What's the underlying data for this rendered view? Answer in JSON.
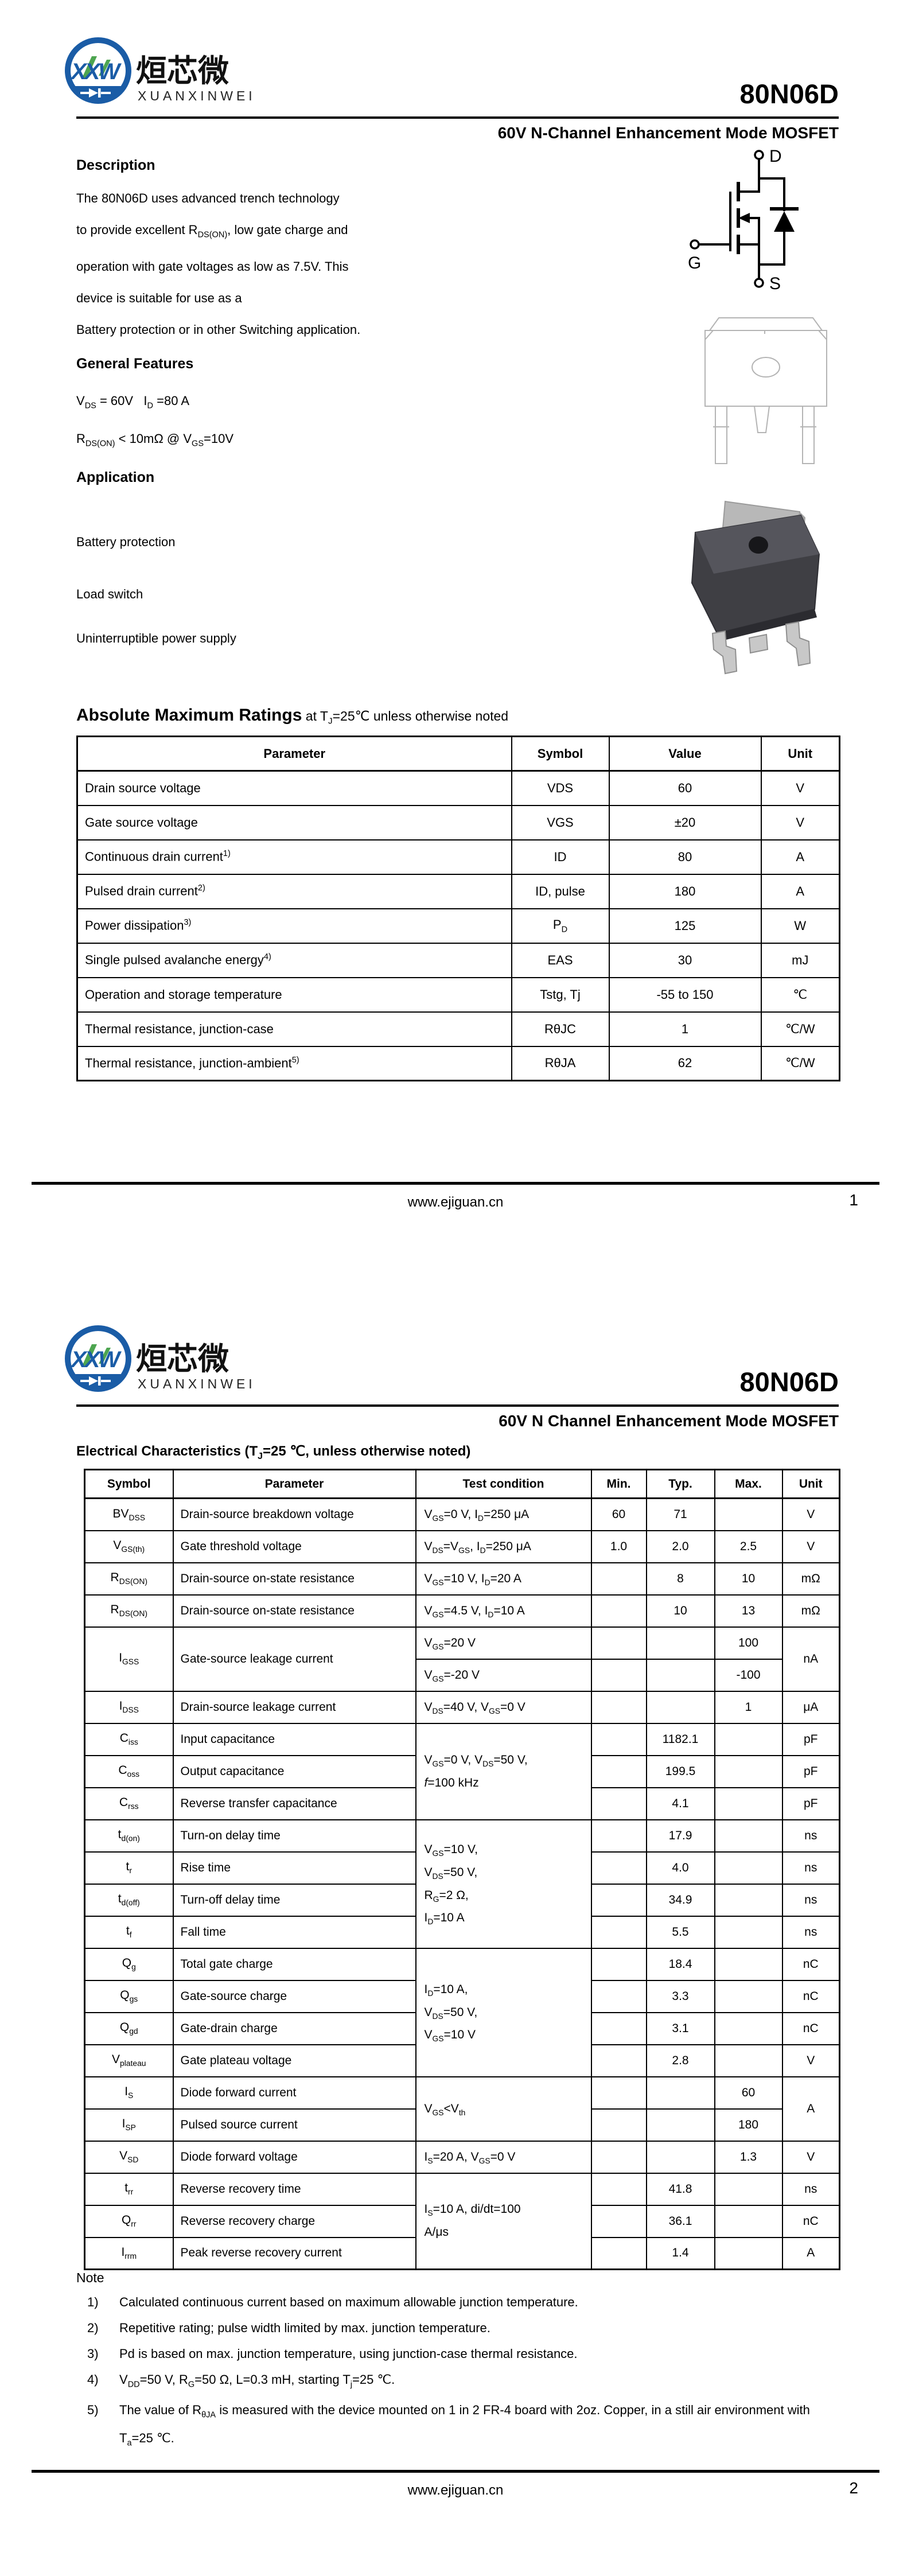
{
  "colors": {
    "logo_blue": "#1a5ca6",
    "logo_green": "#43a047"
  },
  "brand": {
    "abbr": "XXW",
    "name_cn": "烜芯微",
    "name_en": "XUANXINWEI"
  },
  "page1": {
    "part_number": "80N06D",
    "subtitle": "60V N-Channel Enhancement Mode MOSFET",
    "description_heading": "Description",
    "description_body": "The  80N06D uses advanced trench technology\nto provide excellent R~DS(ON)~, low gate charge and\noperation with gate voltages as low as 7.5V. This\ndevice is suitable for use as a\nBattery protection or in other Switching application.",
    "features_heading": "General Features",
    "features": {
      "line1": "V~DS~ = 60V   I~D~ =80 A",
      "line2": "R~DS(ON)~ < 10mΩ @ V~GS~=10V"
    },
    "application_heading": "Application",
    "application_items": [
      "Battery protection",
      "Load switch",
      "Uninterruptible power supply"
    ],
    "symbol_labels": {
      "d": "D",
      "g": "G",
      "s": "S"
    },
    "abs_max": {
      "heading": "Absolute Maximum Ratings",
      "heading_note": " at T~J~=25℃ unless otherwise noted",
      "columns": [
        "Parameter",
        "Symbol",
        "Value",
        "Unit"
      ],
      "rows": [
        {
          "param": "Drain source voltage",
          "sym": "VDS",
          "val": "60",
          "unit": "V"
        },
        {
          "param": "Gate source voltage",
          "sym": "VGS",
          "val": "±20",
          "unit": "V"
        },
        {
          "param": "Continuous drain current^1)^",
          "sym": "ID",
          "val": "80",
          "unit": "A"
        },
        {
          "param": "Pulsed drain current^2)^",
          "sym": "ID, pulse",
          "val": "180",
          "unit": "A"
        },
        {
          "param": "Power dissipation^3)^",
          "sym": "P~D~",
          "val": "125",
          "unit": "W"
        },
        {
          "param": "Single pulsed avalanche energy^4)^",
          "sym": "EAS",
          "val": "30",
          "unit": "mJ"
        },
        {
          "param": "Operation and storage temperature",
          "sym": "Tstg,  Tj",
          "val": "-55 to 150",
          "unit": "℃"
        },
        {
          "param": "Thermal resistance, junction-case",
          "sym": "RθJC",
          "val": "1",
          "unit": "℃/W"
        },
        {
          "param": "Thermal resistance, junction-ambient^5)^",
          "sym": "RθJA",
          "val": "62",
          "unit": "℃/W"
        }
      ]
    },
    "footer": {
      "url": "www.ejiguan.cn",
      "page": "1"
    }
  },
  "page2": {
    "part_number": "80N06D",
    "subtitle": "60V N Channel Enhancement Mode MOSFET",
    "elec_heading": "Electrical Characteristics (T~J~=25 ℃, unless otherwise noted)",
    "columns": [
      "Symbol",
      "Parameter",
      "Test condition",
      "Min.",
      "Typ.",
      "Max.",
      "Unit"
    ],
    "rows": [
      {
        "sym": "BV~DSS~",
        "param": "Drain-source breakdown voltage",
        "cond": "V~GS~=0 V, I~D~=250 μA",
        "min": "60",
        "typ": "71",
        "max": "",
        "unit": "V"
      },
      {
        "sym": "V~GS(th)~",
        "param": "Gate threshold voltage",
        "cond": "V~DS~=V~GS~, I~D~=250 μA",
        "min": "1.0",
        "typ": "2.0",
        "max": "2.5",
        "unit": "V"
      },
      {
        "sym": "R~DS(ON)~",
        "param": "Drain-source on-state resistance",
        "cond": "V~GS~=10 V, I~D~=20 A",
        "min": "",
        "typ": "8",
        "max": "10",
        "unit": "mΩ"
      },
      {
        "sym": "R~DS(ON)~",
        "param": "Drain-source on-state resistance",
        "cond": "V~GS~=4.5 V, I~D~=10 A",
        "min": "",
        "typ": "10",
        "max": "13",
        "unit": "mΩ"
      },
      {
        "sym": "I~GSS~",
        "param": "Gate-source leakage current",
        "cond": "V~GS~=20 V",
        "min": "",
        "typ": "",
        "max": "100",
        "unit": "nA"
      },
      {
        "cond": "V~GS~=-20 V",
        "min": "",
        "typ": "",
        "max": "-100"
      },
      {
        "sym": "I~DSS~",
        "param": "Drain-source leakage current",
        "cond": "V~DS~=40 V, V~GS~=0 V",
        "min": "",
        "typ": "",
        "max": "1",
        "unit": "μA"
      },
      {
        "sym": "C~iss~",
        "param": "Input capacitance",
        "cond": "V~GS~=0 V,  V~DS~=50 V,\n*f*=100 kHz",
        "min": "",
        "typ": "1182.1",
        "max": "",
        "unit": "pF"
      },
      {
        "sym": "C~oss~",
        "param": "Output capacitance",
        "typ": "199.5",
        "unit": "pF"
      },
      {
        "sym": "C~rss~",
        "param": "Reverse transfer capacitance",
        "typ": "4.1",
        "unit": "pF"
      },
      {
        "sym": "t~d(on)~",
        "param": "Turn-on delay time",
        "cond": "V~GS~=10 V,\nV~DS~=50 V,\nR~G~=2 Ω,\nI~D~=10 A",
        "typ": "17.9",
        "unit": "ns"
      },
      {
        "sym": "t~r~",
        "param": "Rise time",
        "typ": "4.0",
        "unit": "ns"
      },
      {
        "sym": "t~d(off)~",
        "param": "Turn-off delay time",
        "typ": "34.9",
        "unit": "ns"
      },
      {
        "sym": "t~f~",
        "param": "Fall time",
        "typ": "5.5",
        "unit": "ns"
      },
      {
        "sym": "Q~g~",
        "param": "Total gate charge",
        "cond": "I~D~=10 A,\nV~DS~=50 V,\nV~GS~=10 V",
        "typ": "18.4",
        "unit": "nC"
      },
      {
        "sym": "Q~gs~",
        "param": "Gate-source charge",
        "typ": "3.3",
        "unit": "nC"
      },
      {
        "sym": "Q~gd~",
        "param": "Gate-drain charge",
        "typ": "3.1",
        "unit": "nC"
      },
      {
        "sym": "V~plateau~",
        "param": "Gate plateau voltage",
        "typ": "2.8",
        "unit": "V"
      },
      {
        "sym": "I~S~",
        "param": "Diode forward current",
        "cond": "V~GS~<V~th~",
        "max": "60",
        "unit": "A"
      },
      {
        "sym": "I~SP~",
        "param": "Pulsed source current",
        "max": "180"
      },
      {
        "sym": "V~SD~",
        "param": "Diode forward voltage",
        "cond": "I~S~=20 A, V~GS~=0 V",
        "max": "1.3",
        "unit": "V"
      },
      {
        "sym": "t~rr~",
        "param": "Reverse recovery time",
        "cond": "I~S~=10 A,  di/dt=100\nA/μs",
        "typ": "41.8",
        "unit": "ns"
      },
      {
        "sym": "Q~rr~",
        "param": "Reverse recovery charge",
        "typ": "36.1",
        "unit": "nC"
      },
      {
        "sym": "I~rrm~",
        "param": "Peak reverse recovery current",
        "typ": "1.4",
        "unit": "A"
      }
    ],
    "note_heading": "Note",
    "notes": [
      {
        "n": "1)",
        "text": "Calculated continuous current based on maximum allowable junction temperature."
      },
      {
        "n": "2)",
        "text": "Repetitive rating; pulse width limited by max. junction temperature."
      },
      {
        "n": "3)",
        "text": "Pd is based on max. junction temperature, using junction-case thermal resistance."
      },
      {
        "n": "4)",
        "text": "V~DD~=50 V, R~G~=50 Ω, L=0.3 mH, starting T~j~=25 ℃."
      },
      {
        "n": "5)",
        "text": "The value of R~θJA~ is measured with the device mounted on 1 in 2 FR-4 board with 2oz. Copper, in a still air environment with T~a~=25 ℃."
      }
    ],
    "footer": {
      "url": "www.ejiguan.cn",
      "page": "2"
    }
  }
}
